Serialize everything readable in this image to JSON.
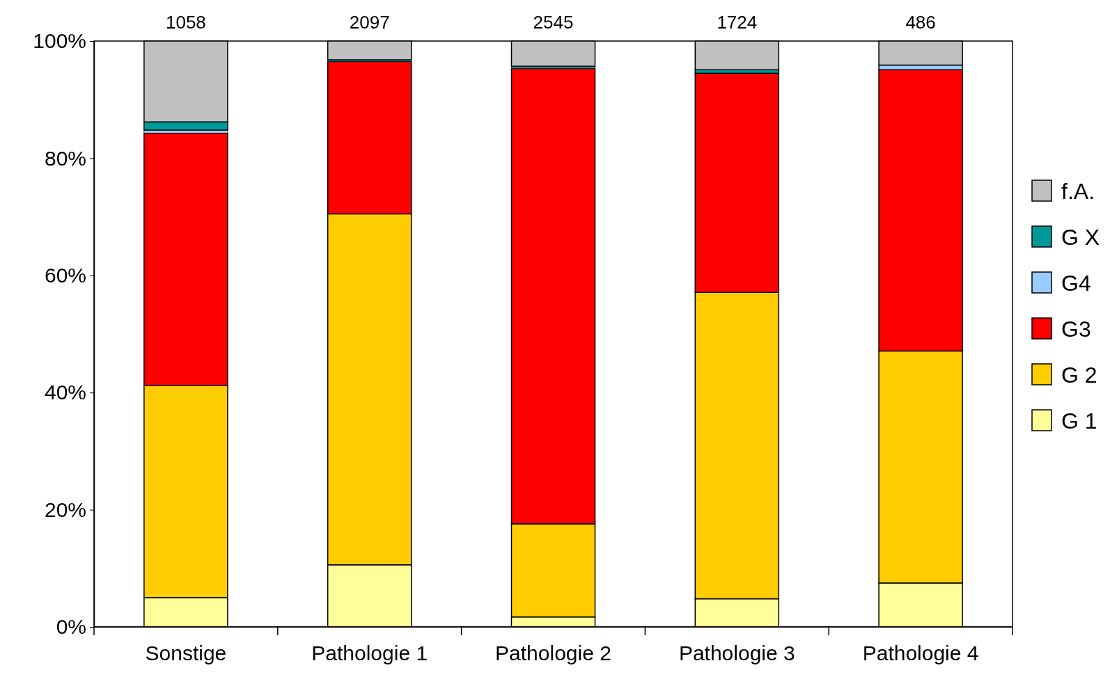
{
  "chart_data": {
    "type": "bar",
    "stacked": true,
    "categories": [
      "Sonstige",
      "Pathologie 1",
      "Pathologie 2",
      "Pathologie 3",
      "Pathologie 4"
    ],
    "series": [
      {
        "name": "G 1",
        "color": "#ffff99",
        "values": [
          5,
          10.6,
          1.7,
          4.8,
          7.5
        ]
      },
      {
        "name": "G 2",
        "color": "#ffcc00",
        "values": [
          36.2,
          59.9,
          15.9,
          52.3,
          39.6
        ]
      },
      {
        "name": "G3",
        "color": "#ff0000",
        "values": [
          43.1,
          26.0,
          77.7,
          37.4,
          48.0
        ]
      },
      {
        "name": "G4",
        "color": "#99ccff",
        "values": [
          0.5,
          0,
          0,
          0,
          0.8
        ]
      },
      {
        "name": "G X",
        "color": "#009999",
        "values": [
          1.4,
          0.3,
          0.4,
          0.6,
          0
        ]
      },
      {
        "name": "f.A.",
        "color": "#c0c0c0",
        "values": [
          13.8,
          3.2,
          4.3,
          4.9,
          4.1
        ]
      }
    ],
    "ylim": [
      0,
      100
    ],
    "yticks": [
      {
        "value": 0,
        "label": "0%"
      },
      {
        "value": 20,
        "label": "20%"
      },
      {
        "value": 40,
        "label": "40%"
      },
      {
        "value": 60,
        "label": "60%"
      },
      {
        "value": 80,
        "label": "80%"
      },
      {
        "value": 100,
        "label": "100%"
      }
    ],
    "annotations": [
      {
        "text": "1058",
        "x": "Sonstige",
        "y": 100
      },
      {
        "text": "2097",
        "x": "Pathologie 1",
        "y": 100
      },
      {
        "text": "2545",
        "x": "Pathologie 2",
        "y": 100
      },
      {
        "text": "1724",
        "x": "Pathologie 3",
        "y": 100
      },
      {
        "text": "486",
        "x": "Pathologie 4",
        "y": 100
      }
    ],
    "legend": "right",
    "grid": false
  }
}
